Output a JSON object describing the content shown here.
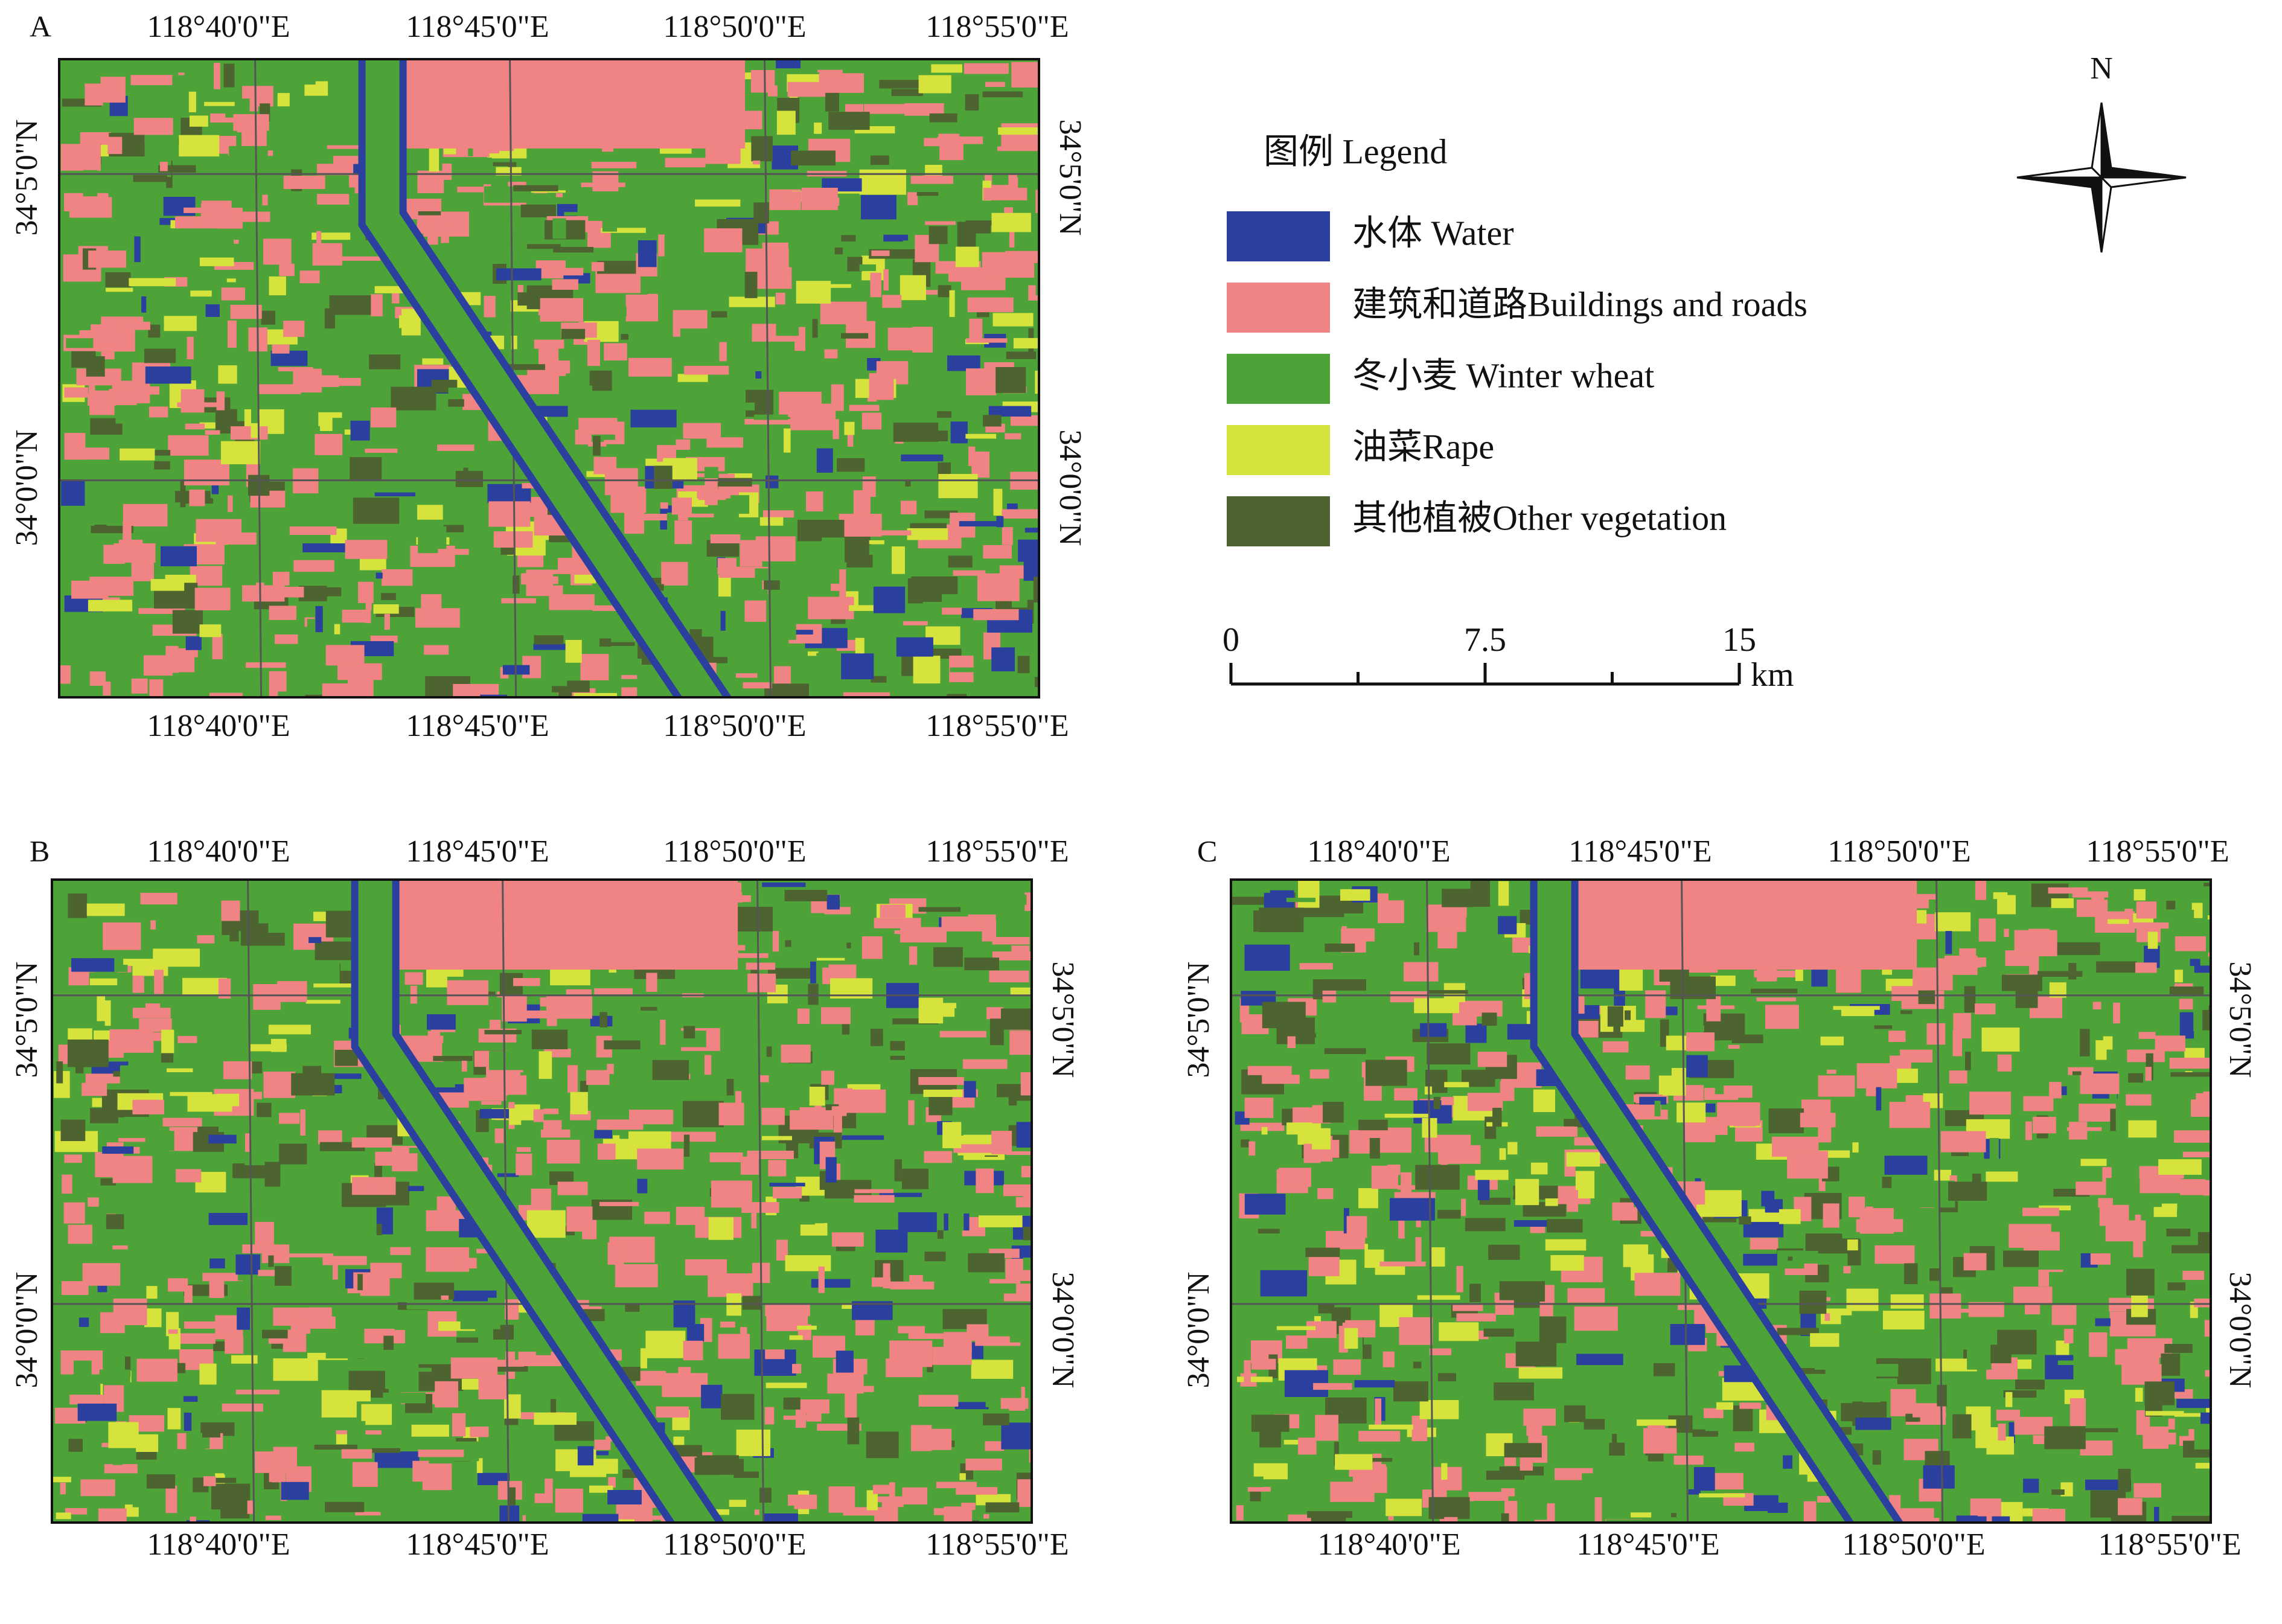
{
  "panels": [
    {
      "label": "A",
      "top_labels": [
        "118°40'0\"E",
        "118°45'0\"E",
        "118°50'0\"E",
        "118°55'0\"E"
      ],
      "bottom_labels": [
        "118°40'0\"E",
        "118°45'0\"E",
        "118°50'0\"E",
        "118°55'0\"E"
      ],
      "left_labels": [
        "34°5'0\"N",
        "34°0'0\"N"
      ],
      "right_labels": [
        "34°5'0\"N",
        "34°0'0\"N"
      ]
    },
    {
      "label": "B",
      "top_labels": [
        "118°40'0\"E",
        "118°45'0\"E",
        "118°50'0\"E",
        "118°55'0\"E"
      ],
      "bottom_labels": [
        "118°40'0\"E",
        "118°45'0\"E",
        "118°50'0\"E",
        "118°55'0\"E"
      ],
      "left_labels": [
        "34°5'0\"N",
        "34°0'0\"N"
      ],
      "right_labels": [
        "34°5'0\"N",
        "34°0'0\"N"
      ]
    },
    {
      "label": "C",
      "top_labels": [
        "118°40'0\"E",
        "118°45'0\"E",
        "118°50'0\"E",
        "118°55'0\"E"
      ],
      "bottom_labels": [
        "118°40'0\"E",
        "118°45'0\"E",
        "118°50'0\"E",
        "118°55'0\"E"
      ],
      "left_labels": [
        "34°5'0\"N",
        "34°0'0\"N"
      ],
      "right_labels": [
        "34°5'0\"N",
        "34°0'0\"N"
      ]
    }
  ],
  "legend": {
    "title": "图例 Legend",
    "items": [
      {
        "label": "水体 Water",
        "color": "#2b3f9e"
      },
      {
        "label": "建筑和道路Buildings and roads",
        "color": "#f08383"
      },
      {
        "label": "冬小麦 Winter wheat",
        "color": "#4ea338"
      },
      {
        "label": "油菜Rape",
        "color": "#d6e33c"
      },
      {
        "label": "其他植被Other vegetation",
        "color": "#4d6330"
      }
    ]
  },
  "scale_bar": {
    "ticks": [
      0,
      7.5,
      15
    ],
    "unit": "km"
  },
  "north_arrow": {
    "label": "N"
  }
}
